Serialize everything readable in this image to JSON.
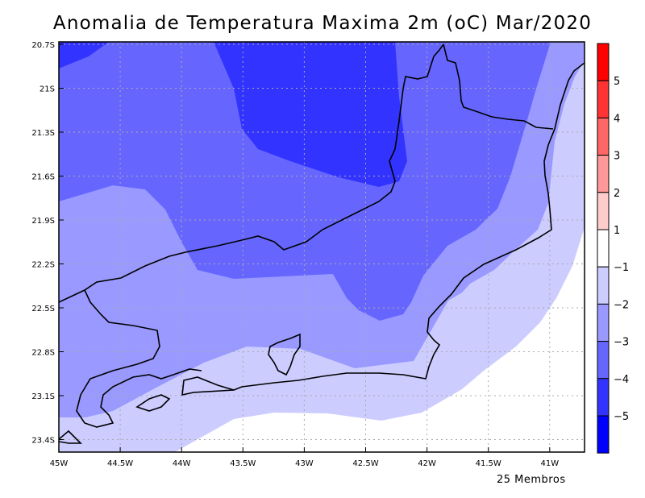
{
  "title": "Anomalia de Temperatura Maxima 2m (oC) Mar/2020",
  "footer": "25 Membros",
  "y_ticks": [
    "20.7S",
    "21S",
    "21.3S",
    "21.6S",
    "21.9S",
    "22.2S",
    "22.5S",
    "22.8S",
    "23.1S",
    "23.4S"
  ],
  "x_ticks": [
    "45W",
    "44.5W",
    "44W",
    "43.5W",
    "43W",
    "42.5W",
    "42W",
    "41.5W",
    "41W"
  ],
  "colorbar": {
    "labels": [
      "5",
      "4",
      "3",
      "2",
      "1",
      "−1",
      "−2",
      "−3",
      "−4",
      "−5"
    ],
    "colors": [
      "#ff0000",
      "#ff3333",
      "#ff6666",
      "#ff9999",
      "#ffcccc",
      "#ffffff",
      "#ccccff",
      "#9999ff",
      "#6666ff",
      "#3333ff",
      "#0000ff"
    ]
  }
}
